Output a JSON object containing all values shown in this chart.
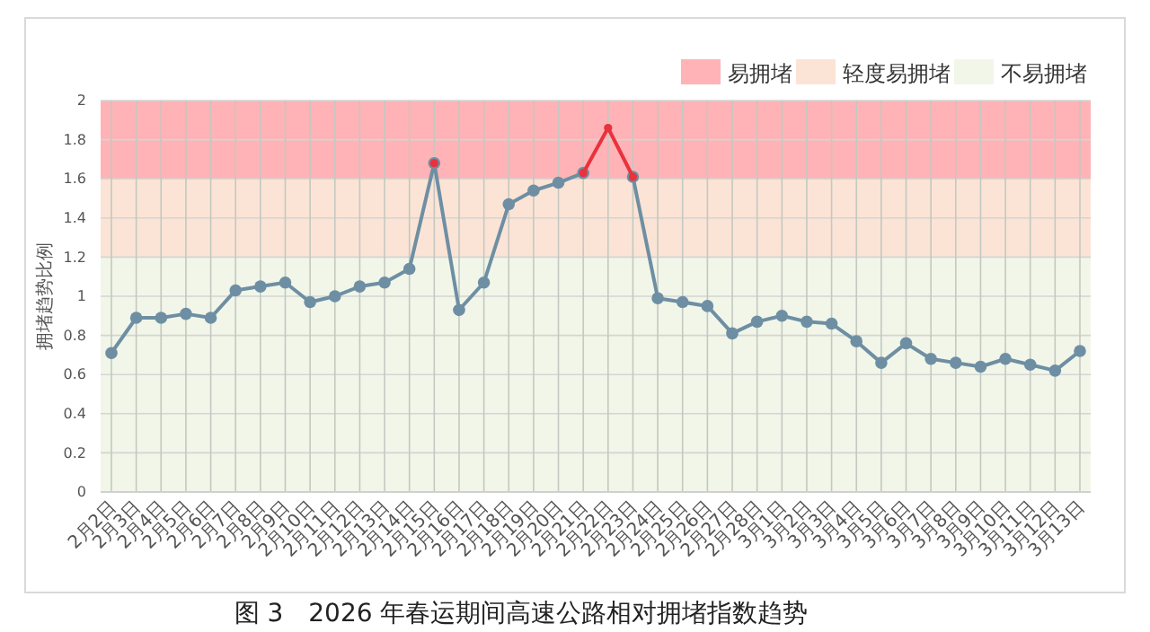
{
  "chart_data": {
    "type": "line",
    "title": "图 3　2026 年春运期间高速公路相对拥堵指数趋势",
    "ylabel": "拥堵趋势比例",
    "categories": [
      "2月2日",
      "2月3日",
      "2月4日",
      "2月5日",
      "2月6日",
      "2月7日",
      "2月8日",
      "2月9日",
      "2月10日",
      "2月11日",
      "2月12日",
      "2月13日",
      "2月14日",
      "2月15日",
      "2月16日",
      "2月17日",
      "2月18日",
      "2月19日",
      "2月20日",
      "2月21日",
      "2月22日",
      "2月23日",
      "2月24日",
      "2月25日",
      "2月26日",
      "2月27日",
      "2月28日",
      "3月1日",
      "3月2日",
      "3月3日",
      "3月4日",
      "3月5日",
      "3月6日",
      "3月7日",
      "3月8日",
      "3月9日",
      "3月10日",
      "3月11日",
      "3月12日",
      "3月13日"
    ],
    "series": [
      {
        "color": "#6e8fa3",
        "values": [
          0.71,
          0.89,
          0.89,
          0.91,
          0.89,
          1.03,
          1.05,
          1.07,
          0.97,
          1.0,
          1.05,
          1.07,
          1.14,
          1.68,
          0.93,
          1.07,
          1.47,
          1.54,
          1.58,
          1.63,
          null,
          1.61,
          0.99,
          0.97,
          0.95,
          0.81,
          0.87,
          0.9,
          0.87,
          0.86,
          0.77,
          0.66,
          0.76,
          0.68,
          0.66,
          0.64,
          0.68,
          0.65,
          0.62,
          0.72
        ]
      },
      {
        "color": "#e8323c",
        "values": [
          null,
          null,
          null,
          null,
          null,
          null,
          null,
          null,
          null,
          null,
          null,
          null,
          null,
          1.68,
          null,
          null,
          null,
          null,
          null,
          1.63,
          1.86,
          1.61,
          null,
          null,
          null,
          null,
          null,
          null,
          null,
          null,
          null,
          null,
          null,
          null,
          null,
          null,
          null,
          null,
          null,
          null
        ]
      }
    ],
    "ylim": [
      0,
      2
    ],
    "yticks": [
      0,
      0.2,
      0.4,
      0.6,
      0.8,
      1,
      1.2,
      1.4,
      1.6,
      1.8,
      2
    ],
    "grid": true,
    "marker": "circle",
    "line_style": "solid",
    "legend": "top right",
    "bands": [
      {
        "axis": "y",
        "from": 1.6,
        "to": 2,
        "label": "易拥堵",
        "color": "#ffb3b6"
      },
      {
        "axis": "y",
        "from": 1.2,
        "to": 1.6,
        "label": "轻度易拥堵",
        "color": "#fbe4d6"
      },
      {
        "axis": "y",
        "from": 0,
        "to": 1.2,
        "label": "不易拥堵",
        "color": "#f1f6e9"
      }
    ]
  }
}
